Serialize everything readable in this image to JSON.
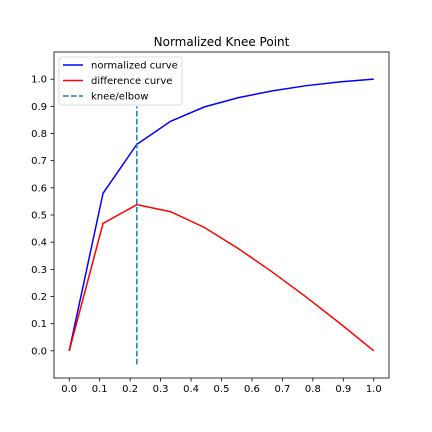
{
  "chart_data": {
    "type": "line",
    "title": "Normalized Knee Point",
    "xlabel": "",
    "ylabel": "",
    "xlim": [
      -0.05,
      1.05
    ],
    "ylim": [
      -0.1,
      1.1
    ],
    "xticks": [
      0.0,
      0.1,
      0.2,
      0.3,
      0.4,
      0.5,
      0.6,
      0.7,
      0.8,
      0.9,
      1.0
    ],
    "xtick_labels": [
      "0.0",
      "0.1",
      "0.2",
      "0.3",
      "0.4",
      "0.5",
      "0.6",
      "0.7",
      "0.8",
      "0.9",
      "1.0"
    ],
    "yticks": [
      0.0,
      0.1,
      0.2,
      0.3,
      0.4,
      0.5,
      0.6,
      0.7,
      0.8,
      0.9,
      1.0
    ],
    "ytick_labels": [
      "0.0",
      "0.1",
      "0.2",
      "0.3",
      "0.4",
      "0.5",
      "0.6",
      "0.7",
      "0.8",
      "0.9",
      "1.0"
    ],
    "grid": false,
    "legend_position": "top-left",
    "series": [
      {
        "name": "normalized curve",
        "color": "#0000ff",
        "x": [
          0.0,
          0.111,
          0.222,
          0.333,
          0.444,
          0.556,
          0.667,
          0.778,
          0.889,
          1.0
        ],
        "y": [
          0.0,
          0.58,
          0.76,
          0.845,
          0.898,
          0.932,
          0.957,
          0.976,
          0.99,
          1.0
        ]
      },
      {
        "name": "difference curve",
        "color": "#ff0000",
        "x": [
          0.0,
          0.111,
          0.222,
          0.333,
          0.444,
          0.556,
          0.667,
          0.778,
          0.889,
          1.0
        ],
        "y": [
          0.0,
          0.469,
          0.538,
          0.512,
          0.454,
          0.376,
          0.29,
          0.198,
          0.101,
          0.0
        ]
      }
    ],
    "knee": {
      "name": "knee/elbow",
      "color": "#1f77b4",
      "x": 0.222,
      "ymin": -0.05,
      "ymax": 0.9
    }
  }
}
